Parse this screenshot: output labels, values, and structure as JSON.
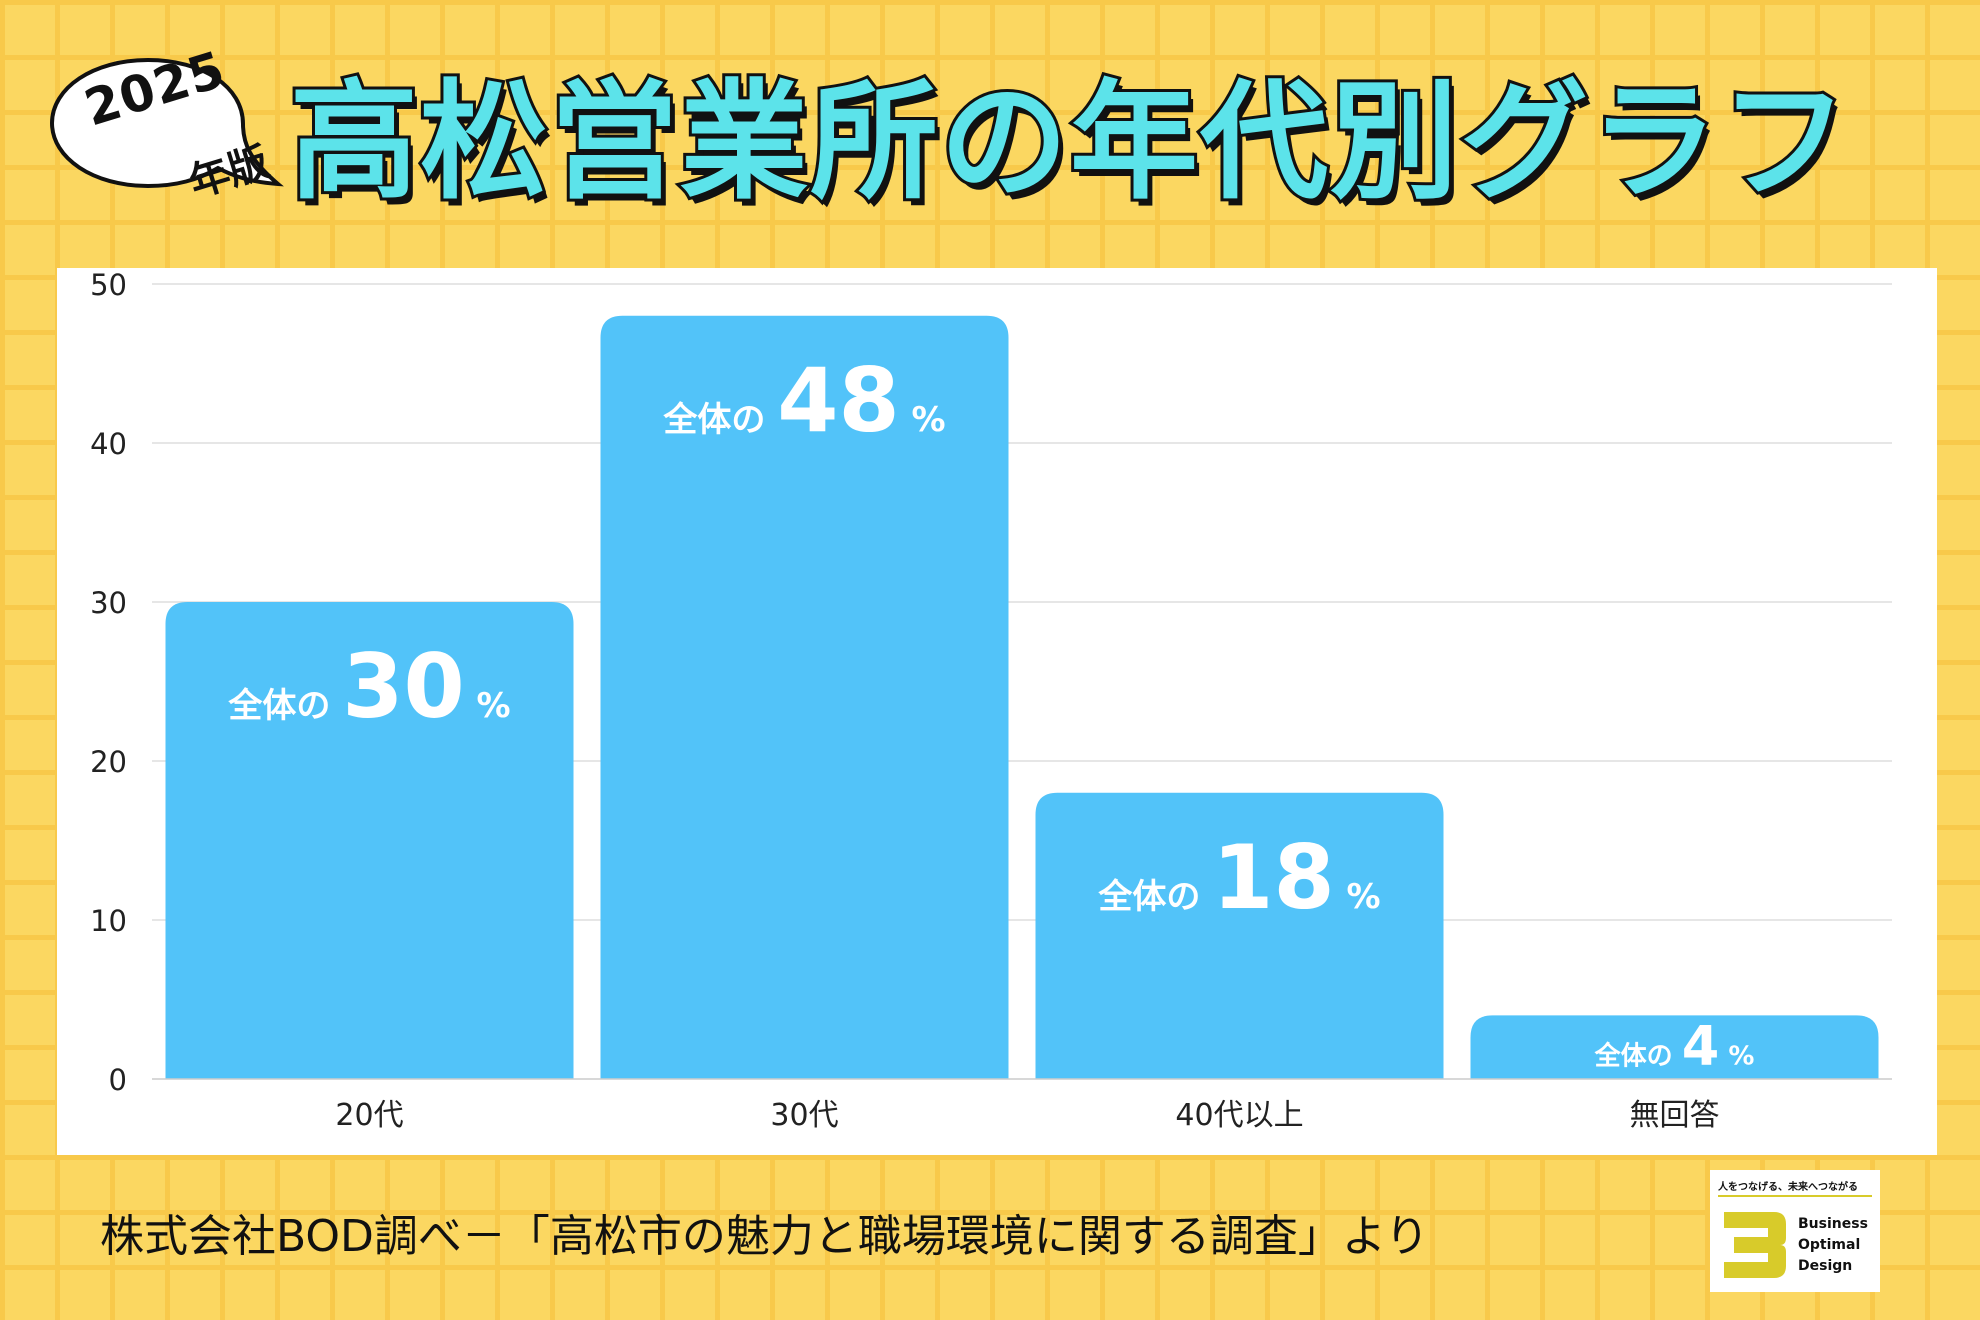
{
  "badge": {
    "year": "2025",
    "edition": "年版"
  },
  "title": "高松営業所の年代別グラフ",
  "chart_data": {
    "type": "bar",
    "categories": [
      "20代",
      "30代",
      "40代以上",
      "無回答"
    ],
    "values": [
      30,
      48,
      18,
      4
    ],
    "ylim": [
      0,
      50
    ],
    "yticks": [
      0,
      10,
      20,
      30,
      40,
      50
    ],
    "grid": true,
    "data_label": {
      "prefix": "全体の",
      "suffix": "%"
    }
  },
  "source_note": "株式会社BOD調べ－「高松市の魅力と職場環境に関する調査」より",
  "logo": {
    "tagline": "人をつなげる、未来へつながる",
    "name_lines": [
      "Business",
      "Optimal",
      "Design"
    ]
  },
  "colors": {
    "bar": "#52c3f9",
    "title_fill": "#5ce3ea",
    "background": "#fbd761",
    "logo_accent": "#d8cb2a"
  }
}
